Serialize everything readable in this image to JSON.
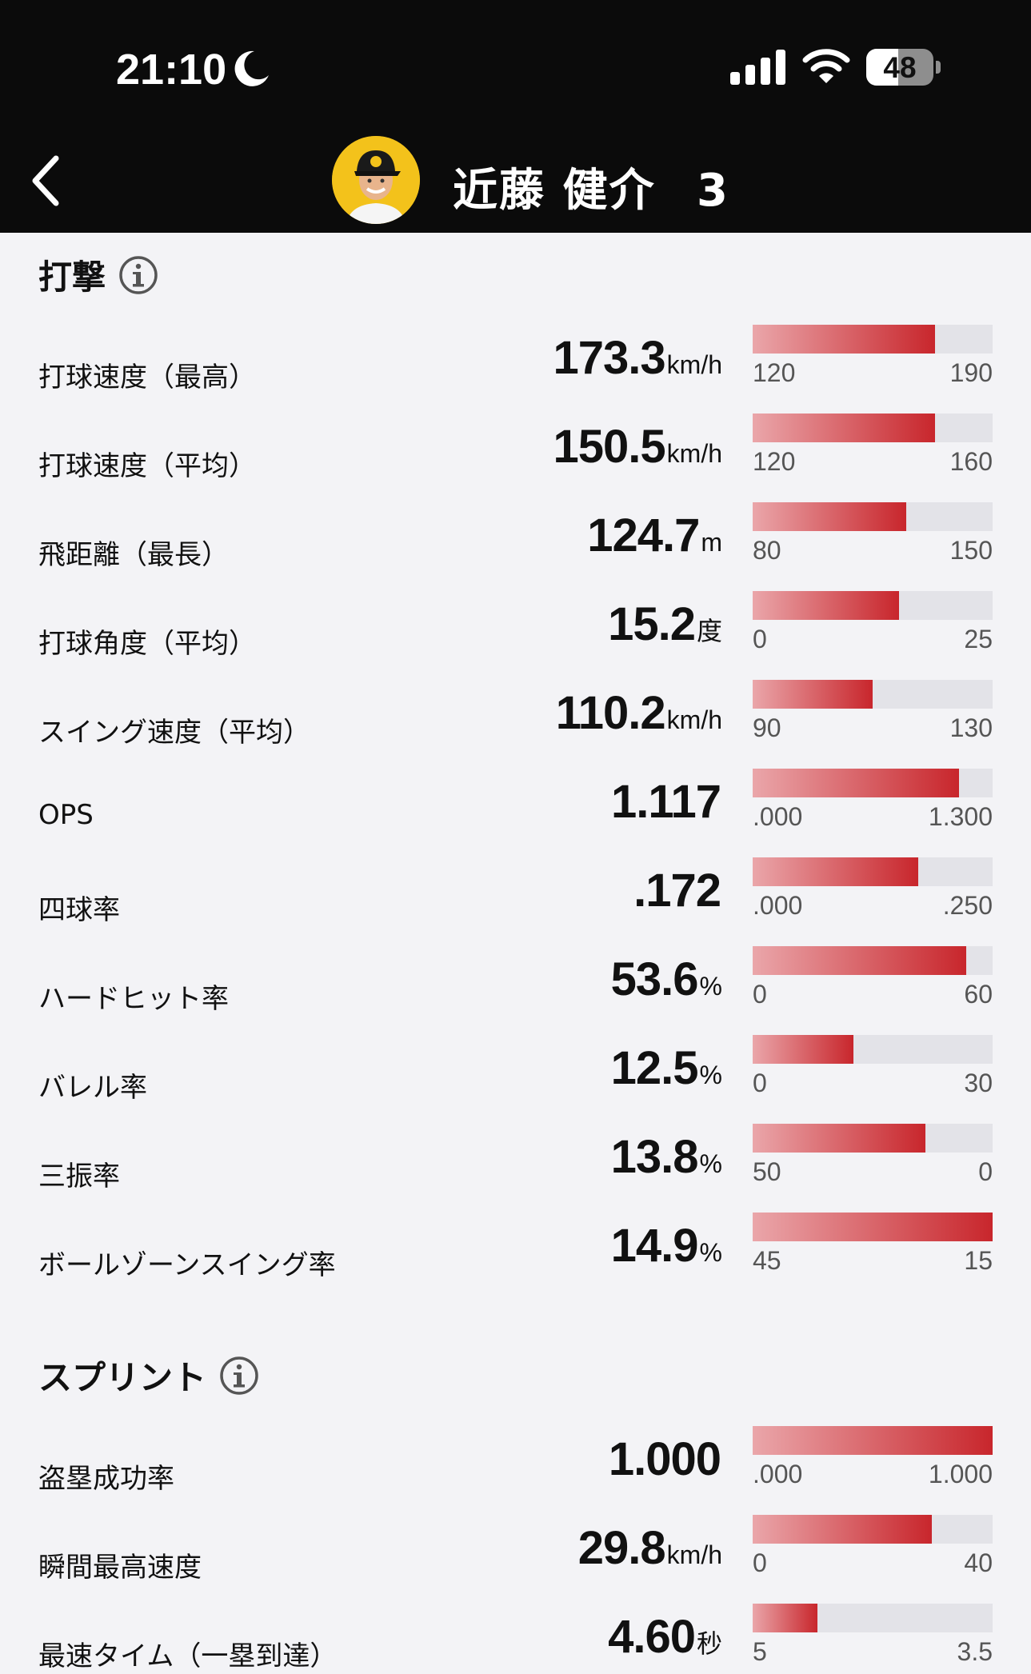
{
  "status_bar": {
    "time": "21:10",
    "battery": "48",
    "battery_level": 0.48
  },
  "header": {
    "player_name": "近藤 健介",
    "player_number": "3"
  },
  "sections": [
    {
      "title": "打撃",
      "rows": [
        {
          "label": "打球速度（最高）",
          "value": "173.3",
          "unit": "km/h",
          "min": "120",
          "max": "190",
          "fill": 0.76
        },
        {
          "label": "打球速度（平均）",
          "value": "150.5",
          "unit": "km/h",
          "min": "120",
          "max": "160",
          "fill": 0.76
        },
        {
          "label": "飛距離（最長）",
          "value": "124.7",
          "unit": "m",
          "min": "80",
          "max": "150",
          "fill": 0.64
        },
        {
          "label": "打球角度（平均）",
          "value": "15.2",
          "unit": "度",
          "min": "0",
          "max": "25",
          "fill": 0.61
        },
        {
          "label": "スイング速度（平均）",
          "value": "110.2",
          "unit": "km/h",
          "min": "90",
          "max": "130",
          "fill": 0.5
        },
        {
          "label": "OPS",
          "value": "1.117",
          "unit": "",
          "min": ".000",
          "max": "1.300",
          "fill": 0.86
        },
        {
          "label": "四球率",
          "value": ".172",
          "unit": "",
          "min": ".000",
          "max": ".250",
          "fill": 0.69
        },
        {
          "label": "ハードヒット率",
          "value": "53.6",
          "unit": "%",
          "min": "0",
          "max": "60",
          "fill": 0.89
        },
        {
          "label": "バレル率",
          "value": "12.5",
          "unit": "%",
          "min": "0",
          "max": "30",
          "fill": 0.42
        },
        {
          "label": "三振率",
          "value": "13.8",
          "unit": "%",
          "min": "50",
          "max": "0",
          "fill": 0.72
        },
        {
          "label": "ボールゾーンスイング率",
          "value": "14.9",
          "unit": "%",
          "min": "45",
          "max": "15",
          "fill": 1.0
        }
      ]
    },
    {
      "title": "スプリント",
      "rows": [
        {
          "label": "盗塁成功率",
          "value": "1.000",
          "unit": "",
          "min": ".000",
          "max": "1.000",
          "fill": 1.0
        },
        {
          "label": "瞬間最高速度",
          "value": "29.8",
          "unit": "km/h",
          "min": "0",
          "max": "40",
          "fill": 0.745
        },
        {
          "label": "最速タイム（一塁到達）",
          "value": "4.60",
          "unit": "秒",
          "min": "5",
          "max": "3.5",
          "fill": 0.27
        }
      ]
    }
  ],
  "colors": {
    "bar_start": "#eaa6aa",
    "bar_end": "#c8262c",
    "track": "#e3e3e8",
    "header_bg": "#0b0b0b"
  }
}
